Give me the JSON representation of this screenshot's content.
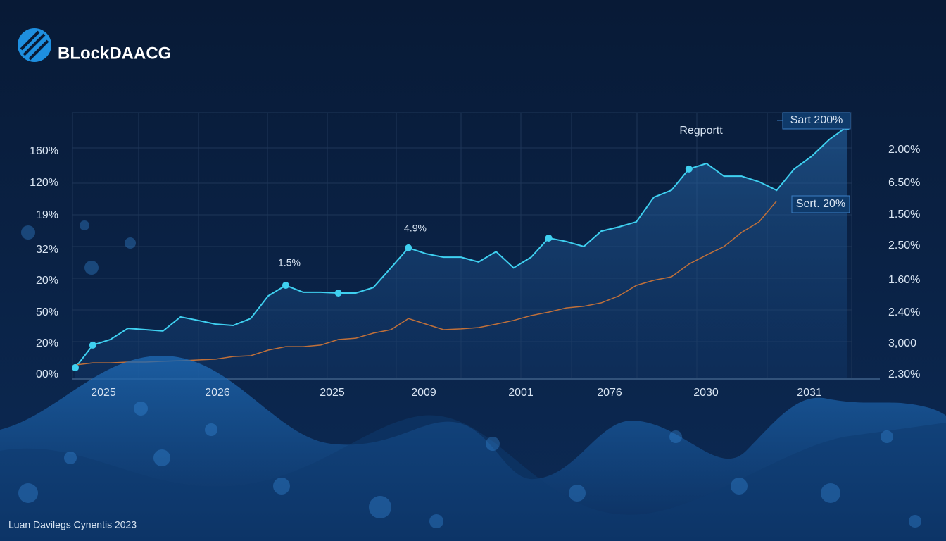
{
  "brand": "BLockDAACG",
  "footer": "Luan Davilegs Cynentis 2023",
  "chart_data": {
    "type": "line",
    "ylim": [
      0,
      100
    ],
    "y_labels": [
      "160%",
      "120%",
      "19%",
      "32%",
      "20%",
      "50%",
      "20%",
      "00%"
    ],
    "y2_labels": [
      "2.00%",
      "6.50%",
      "1.50%",
      "2.50%",
      "1.60%",
      "2.40%",
      "3,000",
      "2.30%"
    ],
    "x_labels": [
      "2025",
      "2026",
      "2025",
      "2009",
      "2001",
      "2076",
      "2030",
      "2031"
    ],
    "annotations": [
      "1.5%",
      "4.9%",
      "Regportt",
      "Sart 200%",
      "Sert. 20%"
    ],
    "markers": [
      0,
      1,
      12,
      15,
      19,
      27,
      35,
      44
    ],
    "series": [
      {
        "color": "#3fd0f0",
        "values": [
          4.0,
          12.5,
          14.6,
          18.8,
          18.3,
          17.8,
          23.1,
          21.8,
          20.4,
          19.9,
          22.5,
          31.0,
          35.0,
          32.4,
          32.4,
          32.1,
          32.1,
          34.2,
          41.6,
          49.1,
          46.9,
          45.6,
          45.6,
          43.8,
          47.7,
          41.6,
          45.6,
          52.8,
          51.5,
          49.6,
          55.4,
          57.0,
          58.9,
          68.2,
          70.8,
          78.8,
          80.9,
          76.1,
          76.1,
          74.0,
          70.8,
          78.8,
          83.6,
          89.9,
          94.7
        ]
      },
      {
        "color": "#c0703a",
        "values": [
          5.0,
          5.8,
          5.8,
          6.1,
          6.1,
          6.4,
          6.6,
          6.9,
          7.2,
          8.2,
          8.5,
          10.6,
          11.9,
          11.9,
          12.5,
          14.6,
          15.1,
          17.0,
          18.3,
          22.5,
          20.4,
          18.3,
          18.6,
          19.1,
          20.4,
          21.8,
          23.6,
          24.9,
          26.5,
          27.1,
          28.4,
          31.0,
          35.0,
          36.9,
          38.2,
          43.0,
          46.4,
          49.6,
          54.9,
          58.9,
          66.8,
          null,
          null,
          null,
          null
        ]
      }
    ]
  }
}
